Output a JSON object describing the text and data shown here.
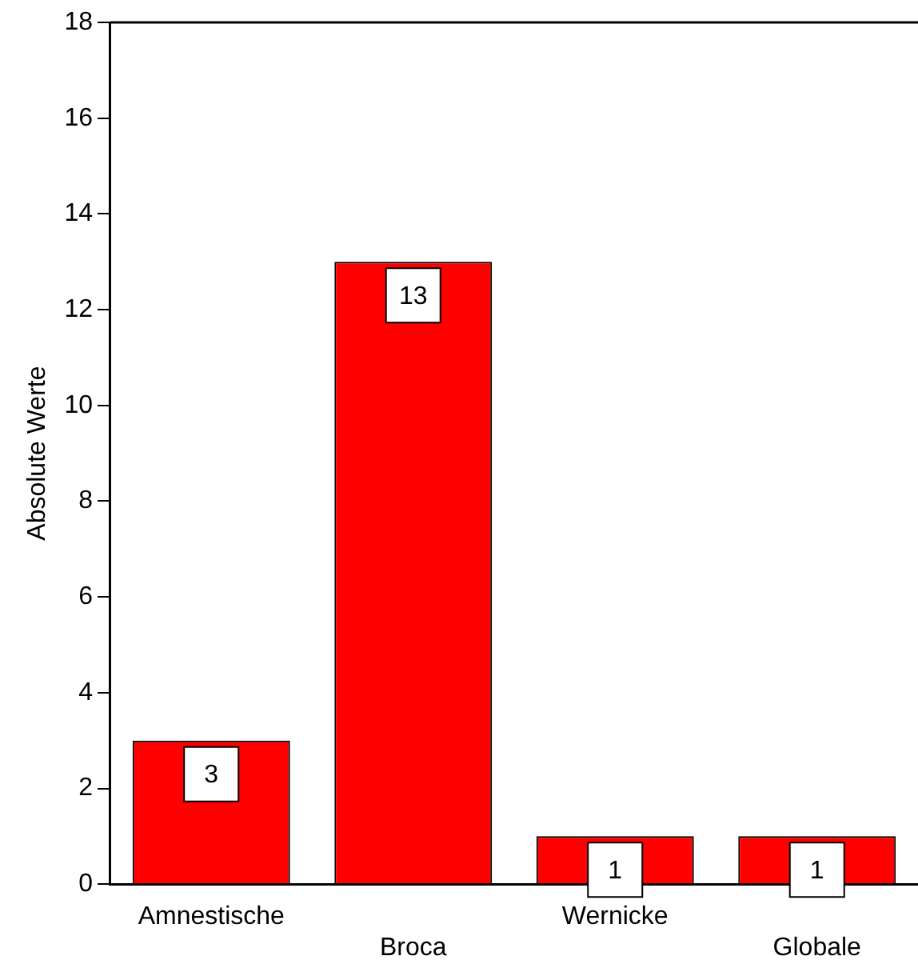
{
  "chart_data": {
    "type": "bar",
    "ylabel": "Absolute Werte",
    "categories": [
      "Amnestische",
      "Broca",
      "Wernicke",
      "Globale"
    ],
    "values": [
      3,
      13,
      1,
      1
    ],
    "color": "#ff0000",
    "ylim": [
      0,
      18
    ],
    "yticks": [
      0,
      2,
      4,
      6,
      8,
      10,
      12,
      14,
      16,
      18
    ],
    "data_labels": true,
    "grid": false,
    "legend": false
  }
}
